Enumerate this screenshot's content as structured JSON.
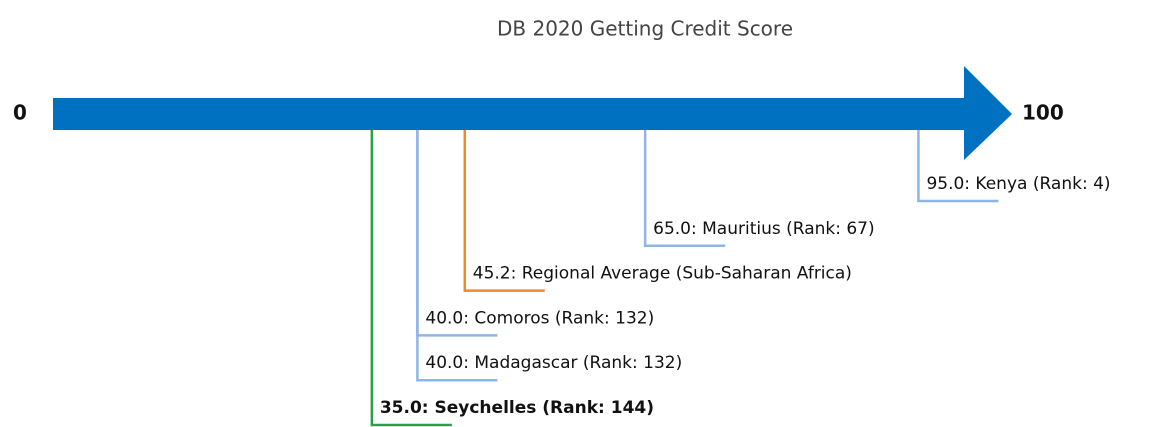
{
  "chart_data": {
    "type": "number_line",
    "title": "DB 2020 Getting Credit Score",
    "xlim": [
      0,
      100
    ],
    "xticks": [
      0,
      100
    ],
    "axis_color": "#0070c0",
    "values": [
      95,
      65,
      45.2,
      40,
      40,
      35
    ],
    "value_labels": [
      "95.0: Kenya (Rank: 4)",
      "65.0: Mauritius (Rank: 67)",
      "45.2: Regional Average (Sub-Saharan Africa)",
      "40.0: Comoros (Rank: 132)",
      "40.0: Madagascar (Rank: 132)",
      "35.0: Seychelles (Rank: 144)"
    ],
    "colors": [
      "#8fb4e8",
      "#8fb4e8",
      "#f0882a",
      "#8fb4e8",
      "#8fb4e8",
      "#2ca048"
    ],
    "bold": [
      false,
      false,
      false,
      false,
      false,
      true
    ]
  }
}
